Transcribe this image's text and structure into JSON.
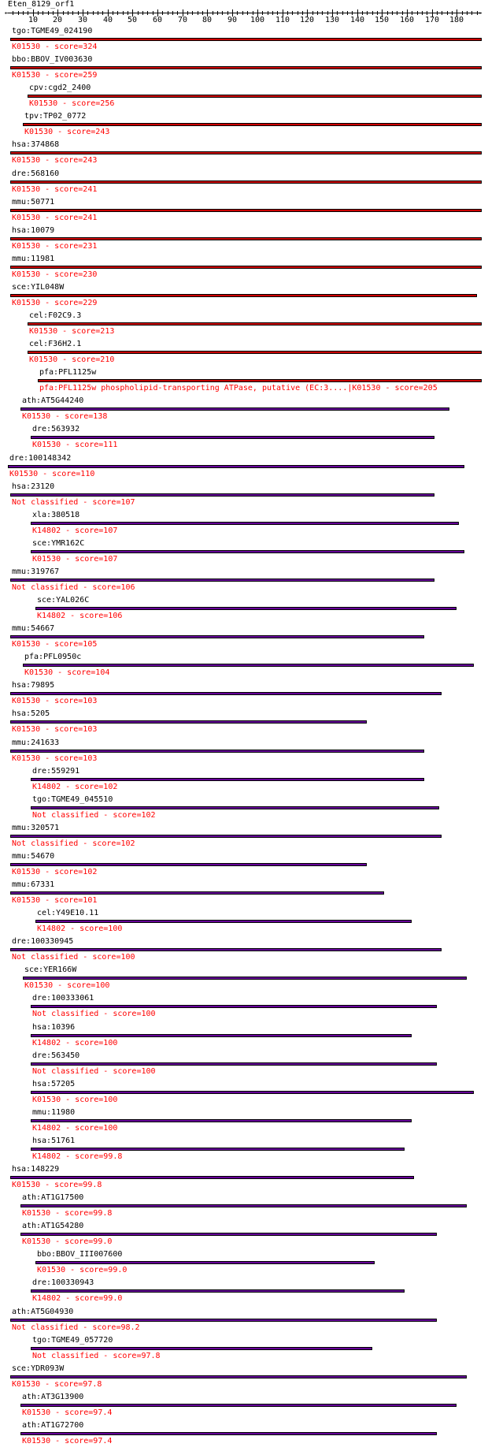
{
  "title": "Eten_8129_orf1",
  "ruler": {
    "max": 190,
    "ticks": [
      "10",
      "20",
      "30",
      "40",
      "50",
      "60",
      "70",
      "80",
      "90",
      "100",
      "110",
      "120",
      "130",
      "140",
      "150",
      "160",
      "170",
      "180"
    ]
  },
  "colors": {
    "red_bar": "#cc0000",
    "purple_bar": "#660099",
    "label_red": "#ff0000"
  },
  "hits": [
    {
      "name": "tgo:TGME49_024190",
      "label": "K01530 - score=324",
      "start": 1,
      "end": 190,
      "color": "red"
    },
    {
      "name": "bbo:BBOV_IV003630",
      "label": "K01530 - score=259",
      "start": 1,
      "end": 190,
      "color": "red"
    },
    {
      "name": "cpv:cgd2_2400",
      "label": "K01530 - score=256",
      "start": 8,
      "end": 190,
      "color": "red"
    },
    {
      "name": "tpv:TP02_0772",
      "label": "K01530 - score=243",
      "start": 6,
      "end": 190,
      "color": "red"
    },
    {
      "name": "hsa:374868",
      "label": "K01530 - score=243",
      "start": 1,
      "end": 190,
      "color": "red"
    },
    {
      "name": "dre:568160",
      "label": "K01530 - score=241",
      "start": 1,
      "end": 190,
      "color": "red"
    },
    {
      "name": "mmu:50771",
      "label": "K01530 - score=241",
      "start": 1,
      "end": 190,
      "color": "red"
    },
    {
      "name": "hsa:10079",
      "label": "K01530 - score=231",
      "start": 1,
      "end": 190,
      "color": "red"
    },
    {
      "name": "mmu:11981",
      "label": "K01530 - score=230",
      "start": 1,
      "end": 190,
      "color": "red"
    },
    {
      "name": "sce:YIL048W",
      "label": "K01530 - score=229",
      "start": 1,
      "end": 188,
      "color": "red"
    },
    {
      "name": "cel:F02C9.3",
      "label": "K01530 - score=213",
      "start": 8,
      "end": 190,
      "color": "red"
    },
    {
      "name": "cel:F36H2.1",
      "label": "K01530 - score=210",
      "start": 8,
      "end": 190,
      "color": "red"
    },
    {
      "name": "pfa:PFL1125w",
      "label": "pfa:PFL1125w  phospholipid-transporting ATPase, putative (EC:3....|K01530 - score=205",
      "start": 12,
      "end": 190,
      "color": "red"
    },
    {
      "name": "ath:AT5G44240",
      "label": "K01530 - score=138",
      "start": 5,
      "end": 177,
      "color": "purple"
    },
    {
      "name": "dre:563932",
      "label": "K01530 - score=111",
      "start": 9,
      "end": 171,
      "color": "purple"
    },
    {
      "name": "dre:100148342",
      "label": "K01530 - score=110",
      "start": 0,
      "end": 183,
      "color": "purple"
    },
    {
      "name": "hsa:23120",
      "label": "Not classified - score=107",
      "start": 1,
      "end": 171,
      "color": "purple"
    },
    {
      "name": "xla:380518",
      "label": "K14802 - score=107",
      "start": 9,
      "end": 181,
      "color": "purple"
    },
    {
      "name": "sce:YMR162C",
      "label": "K01530 - score=107",
      "start": 9,
      "end": 183,
      "color": "purple"
    },
    {
      "name": "mmu:319767",
      "label": "Not classified - score=106",
      "start": 1,
      "end": 171,
      "color": "purple"
    },
    {
      "name": "sce:YAL026C",
      "label": "K14802 - score=106",
      "start": 11,
      "end": 180,
      "color": "purple"
    },
    {
      "name": "mmu:54667",
      "label": "K01530 - score=105",
      "start": 1,
      "end": 167,
      "color": "purple"
    },
    {
      "name": "pfa:PFL0950c",
      "label": "K01530 - score=104",
      "start": 6,
      "end": 187,
      "color": "purple"
    },
    {
      "name": "hsa:79895",
      "label": "K01530 - score=103",
      "start": 1,
      "end": 174,
      "color": "purple"
    },
    {
      "name": "hsa:5205",
      "label": "K01530 - score=103",
      "start": 1,
      "end": 144,
      "color": "purple"
    },
    {
      "name": "mmu:241633",
      "label": "K01530 - score=103",
      "start": 1,
      "end": 167,
      "color": "purple"
    },
    {
      "name": "dre:559291",
      "label": "K14802 - score=102",
      "start": 9,
      "end": 167,
      "color": "purple"
    },
    {
      "name": "tgo:TGME49_045510",
      "label": "Not classified - score=102",
      "start": 9,
      "end": 173,
      "color": "purple"
    },
    {
      "name": "mmu:320571",
      "label": "Not classified - score=102",
      "start": 1,
      "end": 174,
      "color": "purple"
    },
    {
      "name": "mmu:54670",
      "label": "K01530 - score=102",
      "start": 1,
      "end": 144,
      "color": "purple"
    },
    {
      "name": "mmu:67331",
      "label": "K01530 - score=101",
      "start": 1,
      "end": 151,
      "color": "purple"
    },
    {
      "name": "cel:Y49E10.11",
      "label": "K14802 - score=100",
      "start": 11,
      "end": 162,
      "color": "purple"
    },
    {
      "name": "dre:100330945",
      "label": "Not classified - score=100",
      "start": 1,
      "end": 174,
      "color": "purple"
    },
    {
      "name": "sce:YER166W",
      "label": "K01530 - score=100",
      "start": 6,
      "end": 184,
      "color": "purple"
    },
    {
      "name": "dre:100333061",
      "label": "Not classified - score=100",
      "start": 9,
      "end": 172,
      "color": "purple"
    },
    {
      "name": "hsa:10396",
      "label": "K14802 - score=100",
      "start": 9,
      "end": 162,
      "color": "purple"
    },
    {
      "name": "dre:563450",
      "label": "Not classified - score=100",
      "start": 9,
      "end": 172,
      "color": "purple"
    },
    {
      "name": "hsa:57205",
      "label": "K01530 - score=100",
      "start": 9,
      "end": 187,
      "color": "purple"
    },
    {
      "name": "mmu:11980",
      "label": "K14802 - score=100",
      "start": 9,
      "end": 162,
      "color": "purple"
    },
    {
      "name": "hsa:51761",
      "label": "K14802 - score=99.8",
      "start": 9,
      "end": 159,
      "color": "purple"
    },
    {
      "name": "hsa:148229",
      "label": "K01530 - score=99.8",
      "start": 1,
      "end": 163,
      "color": "purple"
    },
    {
      "name": "ath:AT1G17500",
      "label": "K01530 - score=99.8",
      "start": 5,
      "end": 184,
      "color": "purple"
    },
    {
      "name": "ath:AT1G54280",
      "label": "K01530 - score=99.0",
      "start": 5,
      "end": 172,
      "color": "purple"
    },
    {
      "name": "bbo:BBOV_III007600",
      "label": "K01530 - score=99.0",
      "start": 11,
      "end": 147,
      "color": "purple"
    },
    {
      "name": "dre:100330943",
      "label": "K14802 - score=99.0",
      "start": 9,
      "end": 159,
      "color": "purple"
    },
    {
      "name": "ath:AT5G04930",
      "label": "Not classified - score=98.2",
      "start": 1,
      "end": 172,
      "color": "purple"
    },
    {
      "name": "tgo:TGME49_057720",
      "label": "Not classified - score=97.8",
      "start": 9,
      "end": 146,
      "color": "purple"
    },
    {
      "name": "sce:YDR093W",
      "label": "K01530 - score=97.8",
      "start": 1,
      "end": 184,
      "color": "purple"
    },
    {
      "name": "ath:AT3G13900",
      "label": "K01530 - score=97.4",
      "start": 5,
      "end": 180,
      "color": "purple"
    },
    {
      "name": "ath:AT1G72700",
      "label": "K01530 - score=97.4",
      "start": 5,
      "end": 172,
      "color": "purple"
    }
  ]
}
